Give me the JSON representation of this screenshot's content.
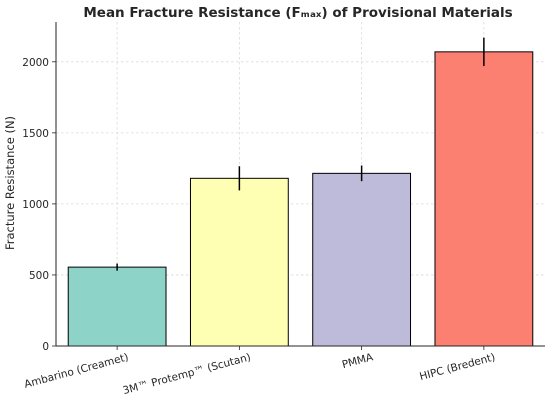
{
  "chart_data": {
    "type": "bar",
    "title": "Mean Fracture Resistance (Fₘₐₓ) of Provisional Materials",
    "xlabel": "",
    "ylabel": "Fracture Resistance (N)",
    "ylim": [
      0,
      2280
    ],
    "yticks": [
      0,
      500,
      1000,
      1500,
      2000
    ],
    "grid": true,
    "categories": [
      "Ambarino (Creamet)",
      "3M™ Protemp™ (Scutan)",
      "PMMA",
      "HIPC (Bredent)"
    ],
    "values": [
      555,
      1180,
      1215,
      2070
    ],
    "errors": [
      25,
      85,
      55,
      100
    ],
    "colors": [
      "#8dd3c7",
      "#ffffb3",
      "#bebada",
      "#fb8072"
    ]
  }
}
